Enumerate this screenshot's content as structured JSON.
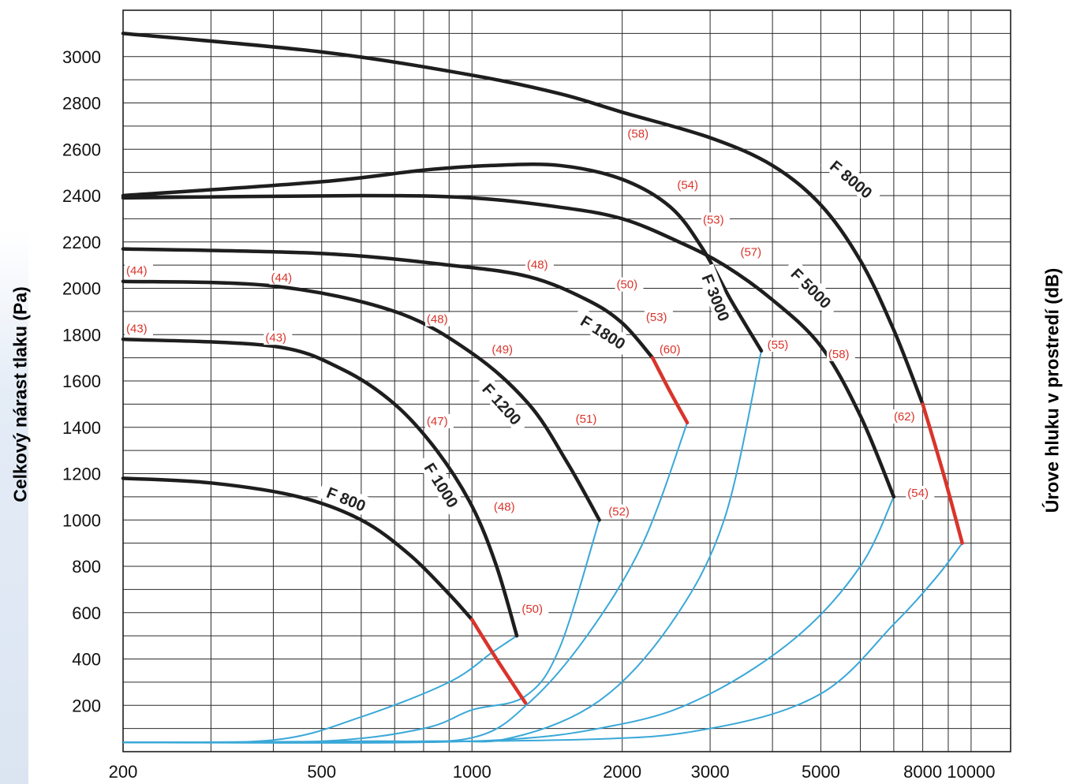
{
  "chart_data": {
    "type": "line",
    "title": "",
    "xlabel": "",
    "ylabel": "Celkový nárast tlaku (Pa)",
    "y2label": "Úrove hluku v prostredí (dB)",
    "xscale": "log",
    "xlim": [
      200,
      12000
    ],
    "ylim": [
      0,
      3200
    ],
    "grid": true,
    "x_ticks": [
      "200",
      "500",
      "1000",
      "2000",
      "3000",
      "5000",
      "8000",
      "10000"
    ],
    "x_tick_values": [
      200,
      500,
      1000,
      2000,
      3000,
      5000,
      8000,
      10000
    ],
    "y_ticks": [
      "3000",
      "2800",
      "2600",
      "2400",
      "2200",
      "2000",
      "1800",
      "1600",
      "1400",
      "1200",
      "1000",
      "800",
      "600",
      "400",
      "200"
    ],
    "y_tick_values": [
      3000,
      2800,
      2600,
      2400,
      2200,
      2000,
      1800,
      1600,
      1400,
      1200,
      1000,
      800,
      600,
      400,
      200
    ],
    "colors": {
      "fan_curve": "#1e1e1e",
      "limit_segment": "#d9342b",
      "system_curve": "#3aa8d8",
      "noise_label": "#d9342b"
    },
    "series": [
      {
        "name": "F 800",
        "label_pos": [
          560,
          1090
        ],
        "label_angle": 22,
        "points": [
          [
            200,
            1180
          ],
          [
            300,
            1160
          ],
          [
            450,
            1100
          ],
          [
            600,
            1000
          ],
          [
            750,
            850
          ],
          [
            900,
            680
          ],
          [
            1000,
            570
          ]
        ],
        "red": [
          [
            1000,
            570
          ],
          [
            1120,
            400
          ],
          [
            1280,
            210
          ]
        ]
      },
      {
        "name": "F 1000",
        "label_pos": [
          868,
          1150
        ],
        "label_angle": 58,
        "points": [
          [
            200,
            1780
          ],
          [
            400,
            1750
          ],
          [
            550,
            1650
          ],
          [
            700,
            1500
          ],
          [
            850,
            1300
          ],
          [
            1000,
            1060
          ],
          [
            1120,
            800
          ],
          [
            1230,
            500
          ]
        ],
        "red": []
      },
      {
        "name": "F 1200",
        "label_pos": [
          1148,
          1500
        ],
        "label_angle": 48,
        "points": [
          [
            200,
            2030
          ],
          [
            400,
            2010
          ],
          [
            700,
            1900
          ],
          [
            1000,
            1720
          ],
          [
            1300,
            1500
          ],
          [
            1550,
            1250
          ],
          [
            1800,
            1000
          ]
        ],
        "red": []
      },
      {
        "name": "F 1800",
        "label_pos": [
          1830,
          1810
        ],
        "label_angle": 32,
        "points": [
          [
            200,
            2170
          ],
          [
            500,
            2150
          ],
          [
            900,
            2100
          ],
          [
            1300,
            2050
          ],
          [
            1700,
            1950
          ],
          [
            2000,
            1850
          ],
          [
            2300,
            1700
          ]
        ],
        "red": [
          [
            2300,
            1700
          ],
          [
            2500,
            1550
          ],
          [
            2700,
            1420
          ]
        ]
      },
      {
        "name": "F 3000",
        "label_pos": [
          3080,
          1960
        ],
        "label_angle": 68,
        "points": [
          [
            200,
            2400
          ],
          [
            500,
            2460
          ],
          [
            800,
            2510
          ],
          [
            1100,
            2530
          ],
          [
            1500,
            2530
          ],
          [
            2000,
            2470
          ],
          [
            2500,
            2350
          ],
          [
            2900,
            2170
          ],
          [
            3300,
            1950
          ],
          [
            3800,
            1730
          ]
        ],
        "red": []
      },
      {
        "name": "F 5000",
        "label_pos": [
          4780,
          2000
        ],
        "label_angle": 45,
        "points": [
          [
            200,
            2390
          ],
          [
            600,
            2400
          ],
          [
            1000,
            2390
          ],
          [
            1500,
            2350
          ],
          [
            2000,
            2300
          ],
          [
            2600,
            2200
          ],
          [
            3200,
            2100
          ],
          [
            4000,
            1950
          ],
          [
            5000,
            1750
          ],
          [
            6000,
            1450
          ],
          [
            7000,
            1100
          ]
        ],
        "red": []
      },
      {
        "name": "F 8000",
        "label_pos": [
          5750,
          2470
        ],
        "label_angle": 40,
        "points": [
          [
            200,
            3100
          ],
          [
            500,
            3020
          ],
          [
            1000,
            2920
          ],
          [
            1500,
            2840
          ],
          [
            2000,
            2760
          ],
          [
            3000,
            2650
          ],
          [
            4000,
            2530
          ],
          [
            5000,
            2360
          ],
          [
            6000,
            2120
          ],
          [
            7000,
            1820
          ],
          [
            8000,
            1500
          ]
        ],
        "red": [
          [
            8000,
            1500
          ],
          [
            8800,
            1200
          ],
          [
            9600,
            900
          ]
        ]
      }
    ],
    "system_curves": [
      {
        "points": [
          [
            200,
            40
          ],
          [
            400,
            50
          ],
          [
            600,
            150
          ],
          [
            900,
            300
          ],
          [
            1100,
            430
          ],
          [
            1230,
            500
          ]
        ]
      },
      {
        "points": [
          [
            200,
            40
          ],
          [
            500,
            45
          ],
          [
            800,
            100
          ],
          [
            1000,
            180
          ],
          [
            1280,
            240
          ],
          [
            1500,
            450
          ],
          [
            1800,
            1000
          ]
        ]
      },
      {
        "points": [
          [
            200,
            40
          ],
          [
            600,
            45
          ],
          [
            1000,
            60
          ],
          [
            1300,
            210
          ],
          [
            1700,
            500
          ],
          [
            2200,
            900
          ],
          [
            2700,
            1420
          ]
        ]
      },
      {
        "points": [
          [
            200,
            40
          ],
          [
            800,
            45
          ],
          [
            1200,
            60
          ],
          [
            1800,
            220
          ],
          [
            2500,
            550
          ],
          [
            3200,
            1000
          ],
          [
            3800,
            1730
          ]
        ]
      },
      {
        "points": [
          [
            200,
            40
          ],
          [
            1000,
            45
          ],
          [
            2000,
            120
          ],
          [
            3000,
            250
          ],
          [
            4500,
            500
          ],
          [
            6000,
            800
          ],
          [
            7000,
            1100
          ]
        ]
      },
      {
        "points": [
          [
            200,
            40
          ],
          [
            1500,
            50
          ],
          [
            3000,
            100
          ],
          [
            5000,
            250
          ],
          [
            7000,
            550
          ],
          [
            8500,
            750
          ],
          [
            9600,
            900
          ]
        ]
      }
    ],
    "noise_labels": [
      {
        "text": "(44)",
        "x": 200,
        "y": 2080
      },
      {
        "text": "(43)",
        "x": 200,
        "y": 1830
      },
      {
        "text": "(44)",
        "x": 390,
        "y": 2050
      },
      {
        "text": "(43)",
        "x": 380,
        "y": 1790
      },
      {
        "text": "(48)",
        "x": 800,
        "y": 1870
      },
      {
        "text": "(48)",
        "x": 1270,
        "y": 2105
      },
      {
        "text": "(49)",
        "x": 1080,
        "y": 1740
      },
      {
        "text": "(47)",
        "x": 800,
        "y": 1430
      },
      {
        "text": "(51)",
        "x": 1590,
        "y": 1440
      },
      {
        "text": "(48)",
        "x": 1090,
        "y": 1060
      },
      {
        "text": "(52)",
        "x": 1850,
        "y": 1040
      },
      {
        "text": "(50)",
        "x": 1240,
        "y": 620
      },
      {
        "text": "(50)",
        "x": 1920,
        "y": 2020
      },
      {
        "text": "(53)",
        "x": 2200,
        "y": 1880
      },
      {
        "text": "(60)",
        "x": 2340,
        "y": 1740
      },
      {
        "text": "(58)",
        "x": 2020,
        "y": 2670
      },
      {
        "text": "(54)",
        "x": 2540,
        "y": 2450
      },
      {
        "text": "(53)",
        "x": 2860,
        "y": 2300
      },
      {
        "text": "(57)",
        "x": 3400,
        "y": 2160
      },
      {
        "text": "(55)",
        "x": 3850,
        "y": 1760
      },
      {
        "text": "(58)",
        "x": 5100,
        "y": 1720
      },
      {
        "text": "(62)",
        "x": 6900,
        "y": 1450
      },
      {
        "text": "(54)",
        "x": 7350,
        "y": 1120
      }
    ]
  }
}
